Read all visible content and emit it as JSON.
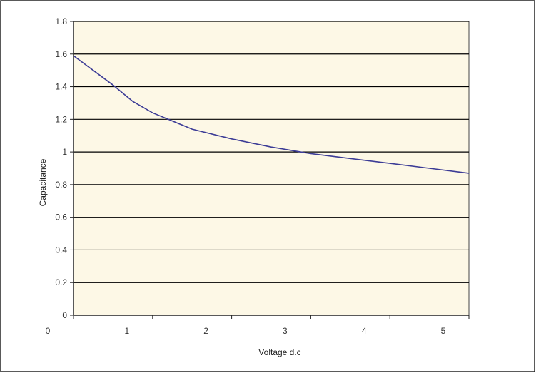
{
  "chart_data": {
    "type": "line",
    "title": "",
    "xlabel": "Voltage d.c",
    "ylabel": "Capacitance",
    "xlim": [
      0,
      5
    ],
    "ylim": [
      0,
      1.8
    ],
    "x_ticks": [
      "0",
      "1",
      "2",
      "3",
      "4",
      "5"
    ],
    "y_ticks": [
      "0",
      "0.2",
      "0.4",
      "0.6",
      "0.8",
      "1",
      "1.2",
      "1.4",
      "1.6",
      "1.8"
    ],
    "grid": "horizontal",
    "legend": "none",
    "series": [
      {
        "x": [
          0,
          0.25,
          0.5,
          0.75,
          1.0,
          1.25,
          1.5,
          2.0,
          2.5,
          3.0,
          3.5,
          4.0,
          4.5,
          5.0
        ],
        "y": [
          1.59,
          1.5,
          1.41,
          1.31,
          1.24,
          1.19,
          1.14,
          1.08,
          1.03,
          0.99,
          0.96,
          0.93,
          0.9,
          0.87
        ]
      }
    ]
  },
  "colors": {
    "plot_background": "#fdf8e6",
    "grid": "#000000",
    "line": "#3c3c96",
    "frame": "#222222"
  }
}
